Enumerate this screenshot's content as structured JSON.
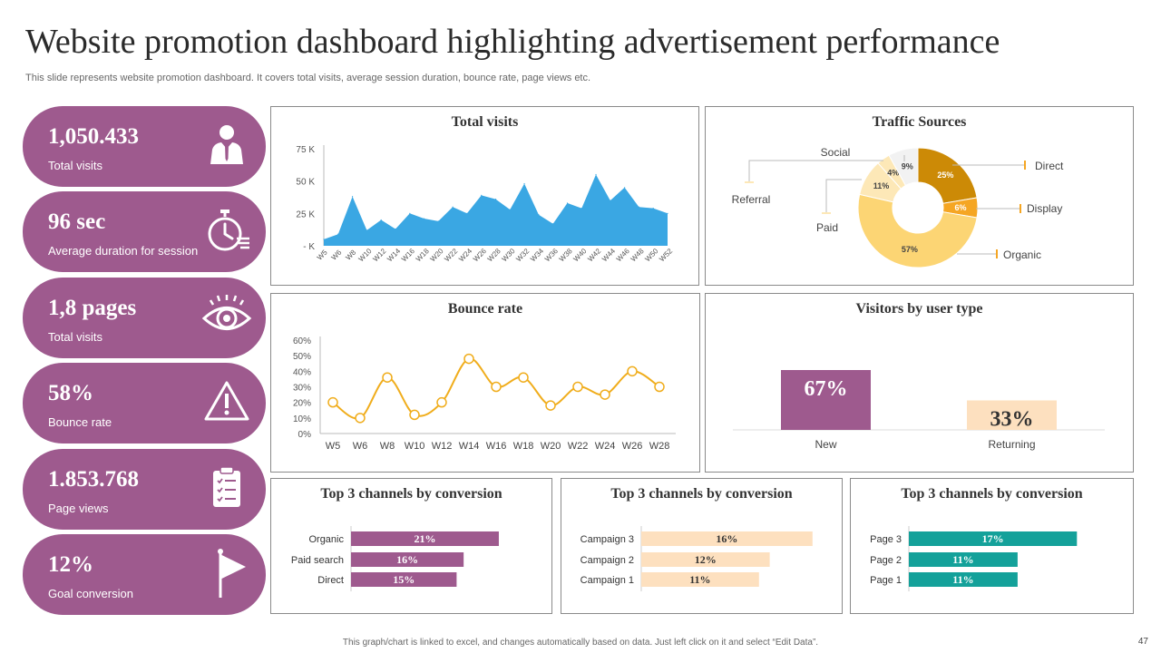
{
  "header": {
    "title": "Website promotion dashboard highlighting advertisement performance",
    "subtitle": "This slide represents website promotion dashboard. It covers total visits, average session duration, bounce rate, page views etc."
  },
  "footer": {
    "note": "This graph/chart is linked to excel, and changes automatically based on data. Just left click on it and select “Edit Data”.",
    "page_number": "47"
  },
  "kpis": [
    {
      "value": "1,050.433",
      "label": "Total visits",
      "icon": "businessman-icon"
    },
    {
      "value": "96 sec",
      "label": "Average duration for session",
      "icon": "stopwatch-icon"
    },
    {
      "value": "1,8 pages",
      "label": "Total visits",
      "icon": "eye-icon"
    },
    {
      "value": "58%",
      "label": "Bounce rate",
      "icon": "warning-icon"
    },
    {
      "value": "1.853.768",
      "label": "Page views",
      "icon": "clipboard-icon"
    },
    {
      "value": "12%",
      "label": "Goal conversion",
      "icon": "flag-icon"
    }
  ],
  "colors": {
    "purple": "#9e5a8e",
    "blue": "#3aa7e3",
    "orange": "#f0ad1c",
    "peach": "#fde0bf",
    "teal": "#14a19a",
    "donut_dark": "#cc8a06",
    "donut_mid": "#f5a623",
    "donut_light": "#fcd574",
    "donut_pale": "#fde8b7",
    "donut_grey": "#f2f2f2"
  },
  "chart_data": [
    {
      "type": "area",
      "title": "Total visits",
      "x": [
        "W5",
        "W6",
        "W8",
        "W10",
        "W12",
        "W14",
        "W16",
        "W18",
        "W20",
        "W22",
        "W24",
        "W26",
        "W28",
        "W30",
        "W32",
        "W34",
        "W36",
        "W38",
        "W40",
        "W42",
        "W44",
        "W46",
        "W48",
        "W50",
        "W52"
      ],
      "values": [
        5000,
        9000,
        38000,
        12000,
        20000,
        13000,
        25000,
        21000,
        19000,
        30000,
        25000,
        39000,
        36000,
        28000,
        48000,
        24000,
        17000,
        33000,
        29000,
        55000,
        35000,
        45000,
        30000,
        29000,
        25000
      ],
      "yticks": [
        "75 K",
        "50 K",
        "25 K",
        "- K"
      ],
      "ylim": [
        0,
        75000
      ]
    },
    {
      "type": "pie",
      "title": "Traffic Sources",
      "slices": [
        {
          "name": "Direct",
          "value": 25,
          "label": "25%"
        },
        {
          "name": "Display",
          "value": 6,
          "label": "6%"
        },
        {
          "name": "Organic",
          "value": 57,
          "label": "57%"
        },
        {
          "name": "Paid",
          "value": 11,
          "label": "11%"
        },
        {
          "name": "Referral",
          "value": 4,
          "label": "4%"
        },
        {
          "name": "Social",
          "value": 9,
          "label": "9%"
        }
      ]
    },
    {
      "type": "line",
      "title": "Bounce rate",
      "x": [
        "W5",
        "W6",
        "W8",
        "W10",
        "W12",
        "W14",
        "W16",
        "W18",
        "W20",
        "W22",
        "W24",
        "W26",
        "W28"
      ],
      "values": [
        20,
        10,
        36,
        12,
        20,
        48,
        30,
        36,
        18,
        30,
        25,
        40,
        30
      ],
      "yticks": [
        "60%",
        "50%",
        "40%",
        "30%",
        "20%",
        "10%",
        "0%"
      ],
      "ylim": [
        0,
        60
      ]
    },
    {
      "type": "bar",
      "title": "Visitors by user type",
      "categories": [
        "New",
        "Returning"
      ],
      "values": [
        67,
        33
      ],
      "labels": [
        "67%",
        "33%"
      ]
    },
    {
      "type": "bar",
      "title": "Top 3 channels by conversion",
      "categories": [
        "Organic",
        "Paid search",
        "Direct"
      ],
      "values": [
        21,
        16,
        15
      ],
      "labels": [
        "21%",
        "16%",
        "15%"
      ]
    },
    {
      "type": "bar",
      "title": "Top 3 channels by conversion",
      "categories": [
        "Campaign 3",
        "Campaign 2",
        "Campaign 1"
      ],
      "values": [
        16,
        12,
        11
      ],
      "labels": [
        "16%",
        "12%",
        "11%"
      ]
    },
    {
      "type": "bar",
      "title": "Top 3 channels by conversion",
      "categories": [
        "Page 3",
        "Page 2",
        "Page 1"
      ],
      "values": [
        17,
        11,
        11
      ],
      "labels": [
        "17%",
        "11%",
        "11%"
      ]
    }
  ]
}
